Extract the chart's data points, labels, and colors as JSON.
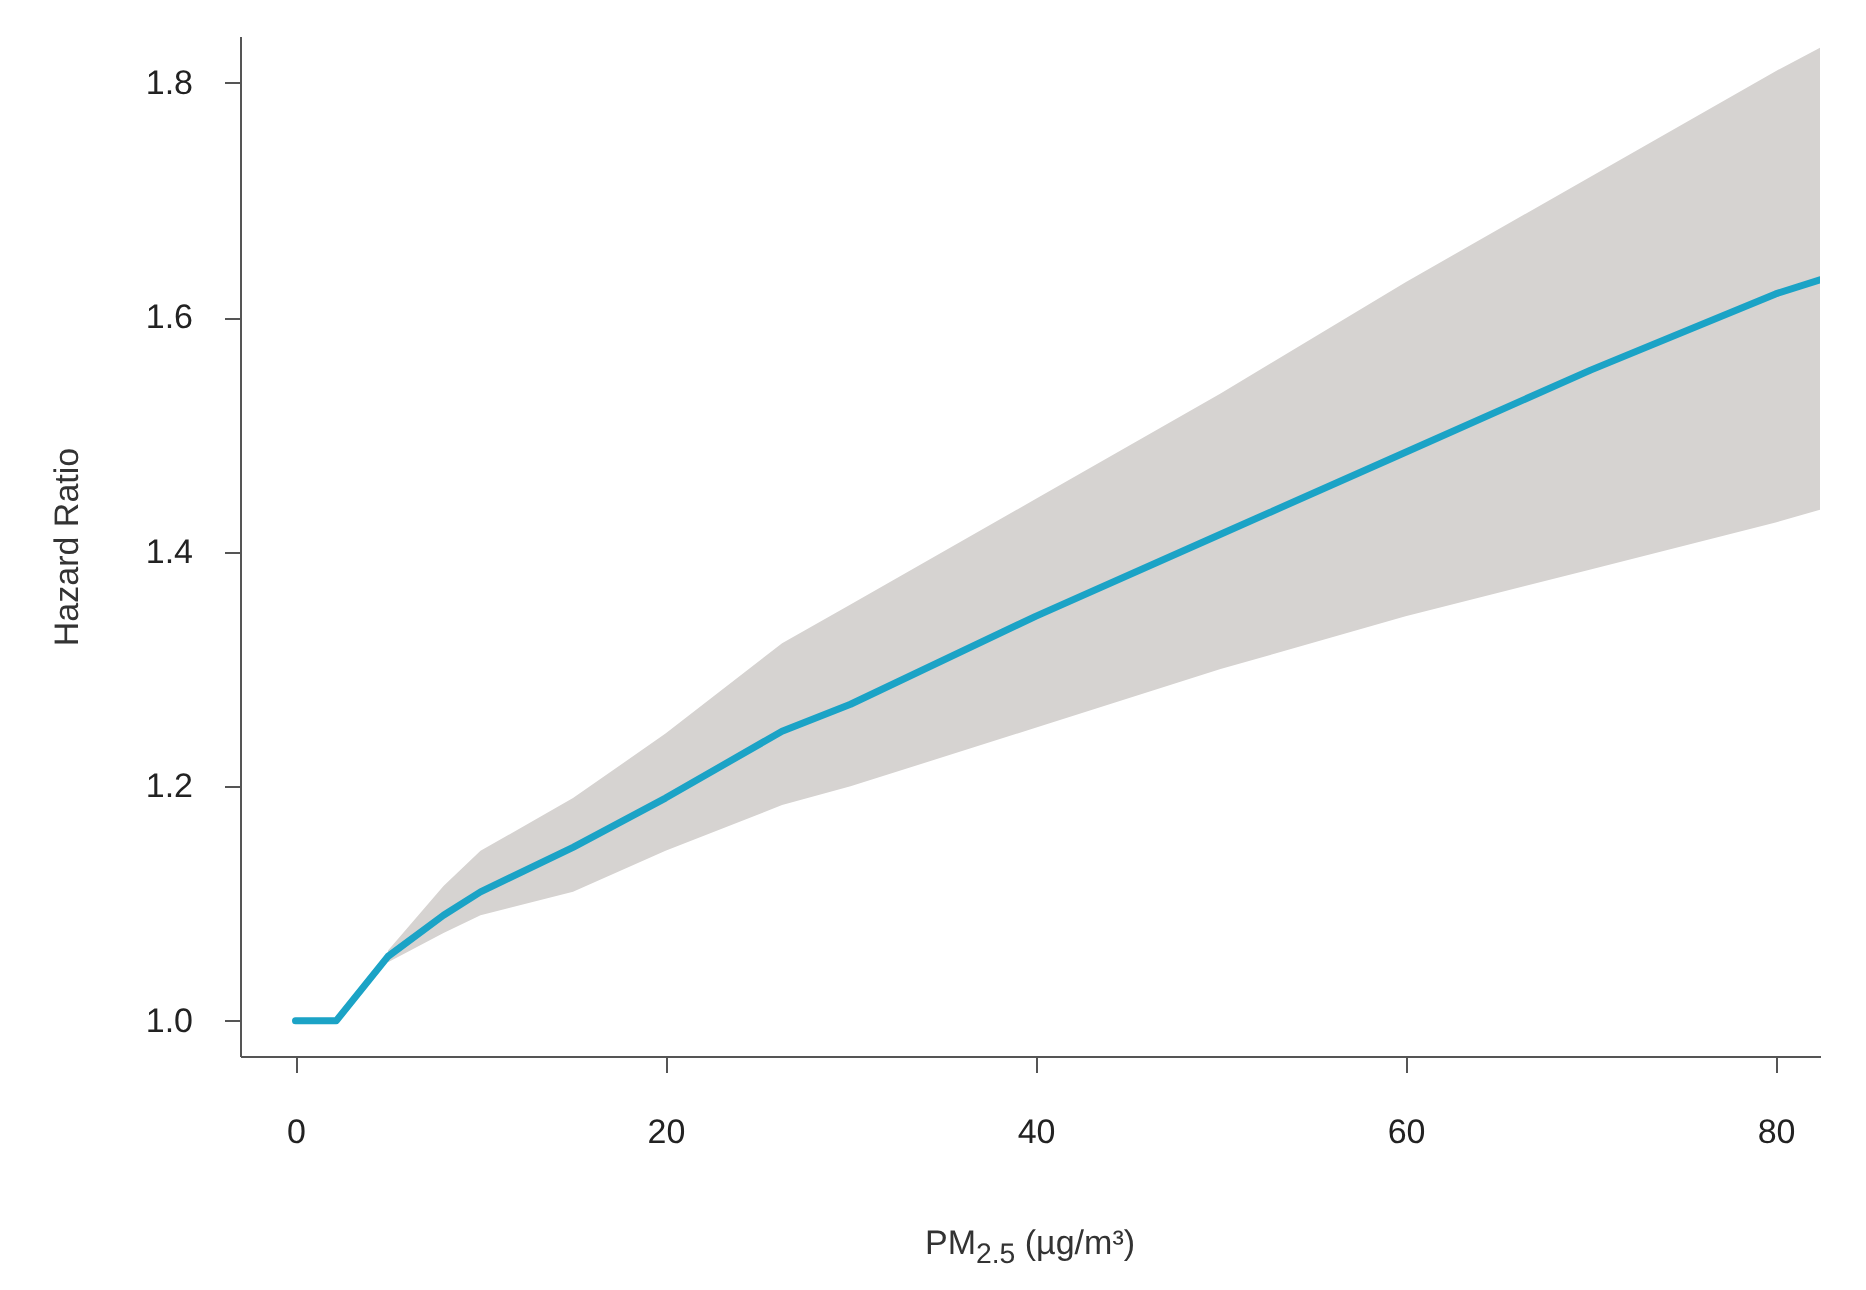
{
  "chart_data": {
    "type": "line",
    "xlabel": "PM$_{2.5}$ (µg/m³)",
    "ylabel": "Hazard Ratio",
    "x": [
      0,
      2.2,
      5,
      8,
      10,
      15,
      20,
      26.3,
      30,
      40,
      50,
      60,
      70,
      80,
      82.4
    ],
    "series": [
      {
        "color": "#1ba3c6",
        "values": [
          1,
          1,
          1.055,
          1.09,
          1.11,
          1.148,
          1.19,
          1.247,
          1.27,
          1.345,
          1.415,
          1.485,
          1.555,
          1.62,
          1.632
        ],
        "lower": [
          null,
          null,
          1.05,
          1.075,
          1.09,
          1.11,
          1.145,
          1.184,
          1.2,
          1.25,
          1.3,
          1.345,
          1.385,
          1.425,
          1.436
        ],
        "upper": [
          null,
          null,
          1.06,
          1.115,
          1.145,
          1.19,
          1.245,
          1.322,
          1.355,
          1.445,
          1.535,
          1.63,
          1.72,
          1.81,
          1.83
        ]
      }
    ],
    "xlim": [
      -3,
      82.4
    ],
    "ylim": [
      0.97,
      1.84
    ],
    "xticks": [
      0,
      20,
      40,
      60,
      80
    ],
    "yticks": [
      {
        "value": 1,
        "label": "1.0"
      },
      1.2,
      1.4,
      1.6,
      1.8
    ],
    "grid": false,
    "marker": "none",
    "line_style": "solid"
  }
}
